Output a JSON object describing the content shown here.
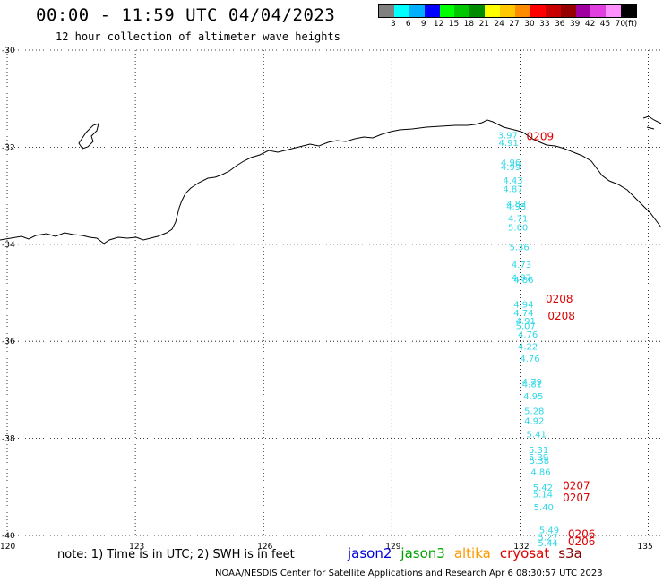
{
  "header": {
    "title": "00:00 - 11:59 UTC 04/04/2023",
    "subtitle": "12 hour collection of altimeter wave heights"
  },
  "color_legend": {
    "unit": "(ft)",
    "labels": [
      "3",
      "6",
      "9",
      "12",
      "15",
      "18",
      "21",
      "24",
      "27",
      "30",
      "33",
      "36",
      "39",
      "42",
      "45",
      "70"
    ],
    "colors": [
      "#808080",
      "#00ffff",
      "#00b0ff",
      "#0000ff",
      "#00ff00",
      "#00c800",
      "#008c00",
      "#ffff00",
      "#ffc800",
      "#ff8c00",
      "#ff0000",
      "#c80000",
      "#960000",
      "#a000a0",
      "#e040e0",
      "#ff90ff",
      "#000000"
    ]
  },
  "axes": {
    "lat_labels": [
      "-30",
      "-32",
      "-34",
      "-36",
      "-38",
      "-40"
    ],
    "lon_labels": [
      "120",
      "123",
      "126",
      "129",
      "132",
      "135"
    ]
  },
  "observations": [
    {
      "text": "3.97",
      "sat": "jason3",
      "lon": 131.48,
      "lat": -31.82
    },
    {
      "text": "4.91",
      "sat": "jason3",
      "lon": 131.5,
      "lat": -31.97
    },
    {
      "text": "4.96",
      "sat": "jason3",
      "lon": 131.55,
      "lat": -32.38
    },
    {
      "text": "4.99",
      "sat": "jason3",
      "lon": 131.55,
      "lat": -32.47
    },
    {
      "text": "4.43",
      "sat": "jason3",
      "lon": 131.6,
      "lat": -32.75
    },
    {
      "text": "4.87",
      "sat": "jason3",
      "lon": 131.6,
      "lat": -32.92
    },
    {
      "text": "4.82",
      "sat": "jason3",
      "lon": 131.68,
      "lat": -33.23
    },
    {
      "text": "4.93",
      "sat": "jason3",
      "lon": 131.68,
      "lat": -33.28
    },
    {
      "text": "4.71",
      "sat": "jason3",
      "lon": 131.72,
      "lat": -33.53
    },
    {
      "text": "5.00",
      "sat": "jason3",
      "lon": 131.72,
      "lat": -33.72
    },
    {
      "text": "5.36",
      "sat": "jason3",
      "lon": 131.75,
      "lat": -34.12
    },
    {
      "text": "4.73",
      "sat": "jason3",
      "lon": 131.8,
      "lat": -34.48
    },
    {
      "text": "4.87",
      "sat": "jason3",
      "lon": 131.8,
      "lat": -34.75
    },
    {
      "text": "4.86",
      "sat": "jason3",
      "lon": 131.85,
      "lat": -34.8
    },
    {
      "text": "4.94",
      "sat": "jason3",
      "lon": 131.85,
      "lat": -35.3
    },
    {
      "text": "4.74",
      "sat": "jason3",
      "lon": 131.85,
      "lat": -35.48
    },
    {
      "text": "4.91",
      "sat": "jason3",
      "lon": 131.9,
      "lat": -35.65
    },
    {
      "text": "5.07",
      "sat": "jason3",
      "lon": 131.9,
      "lat": -35.75
    },
    {
      "text": "4.76",
      "sat": "jason3",
      "lon": 131.95,
      "lat": -35.92
    },
    {
      "text": "4.22",
      "sat": "jason3",
      "lon": 131.95,
      "lat": -36.17
    },
    {
      "text": "4.76",
      "sat": "jason3",
      "lon": 132.0,
      "lat": -36.42
    },
    {
      "text": "4.79",
      "sat": "jason3",
      "lon": 132.05,
      "lat": -36.9
    },
    {
      "text": "4.81",
      "sat": "jason3",
      "lon": 132.05,
      "lat": -36.95
    },
    {
      "text": "4.95",
      "sat": "jason3",
      "lon": 132.08,
      "lat": -37.2
    },
    {
      "text": "5.28",
      "sat": "jason3",
      "lon": 132.1,
      "lat": -37.5
    },
    {
      "text": "4.92",
      "sat": "jason3",
      "lon": 132.1,
      "lat": -37.7
    },
    {
      "text": "5.41",
      "sat": "jason3",
      "lon": 132.15,
      "lat": -37.98
    },
    {
      "text": "5.31",
      "sat": "jason3",
      "lon": 132.2,
      "lat": -38.3
    },
    {
      "text": "5.39",
      "sat": "jason3",
      "lon": 132.2,
      "lat": -38.45
    },
    {
      "text": "5.38",
      "sat": "jason3",
      "lon": 132.22,
      "lat": -38.52
    },
    {
      "text": "4.86",
      "sat": "jason3",
      "lon": 132.25,
      "lat": -38.75
    },
    {
      "text": "5.42",
      "sat": "jason3",
      "lon": 132.3,
      "lat": -39.08
    },
    {
      "text": "5.14",
      "sat": "jason3",
      "lon": 132.3,
      "lat": -39.22
    },
    {
      "text": "5.40",
      "sat": "jason3",
      "lon": 132.32,
      "lat": -39.48
    },
    {
      "text": "5.49",
      "sat": "jason3",
      "lon": 132.45,
      "lat": -39.95
    },
    {
      "text": "5.27",
      "sat": "jason3",
      "lon": 132.42,
      "lat": -40.1
    },
    {
      "text": "5.44",
      "sat": "jason3",
      "lon": 132.42,
      "lat": -40.22
    },
    {
      "text": "0209",
      "sat": "cryosat",
      "lon": 132.15,
      "lat": -31.85
    },
    {
      "text": "0208",
      "sat": "cryosat",
      "lon": 132.6,
      "lat": -35.2
    },
    {
      "text": "0208",
      "sat": "cryosat",
      "lon": 132.65,
      "lat": -35.55
    },
    {
      "text": "0207",
      "sat": "cryosat",
      "lon": 133.0,
      "lat": -39.05
    },
    {
      "text": "0207",
      "sat": "cryosat",
      "lon": 133.0,
      "lat": -39.3
    },
    {
      "text": "0206",
      "sat": "cryosat",
      "lon": 133.12,
      "lat": -40.05
    },
    {
      "text": "0206",
      "sat": "cryosat",
      "lon": 133.12,
      "lat": -40.2
    }
  ],
  "note": "note: 1) Time is in UTC; 2) SWH is in feet",
  "satellites": [
    {
      "name": "jason2",
      "color": "#0000dd"
    },
    {
      "name": "jason3",
      "color": "#00a000"
    },
    {
      "name": "altika",
      "color": "#ff9900"
    },
    {
      "name": "cryosat",
      "color": "#dd0000"
    },
    {
      "name": "s3a",
      "color": "#8b0000"
    }
  ],
  "obs_colors": {
    "jason3": "#30d8e8",
    "cryosat": "#dd0000"
  },
  "credit": "NOAA/NESDIS Center for Satellite Applications and Research   Apr  6 08:30:57 UTC 2023"
}
